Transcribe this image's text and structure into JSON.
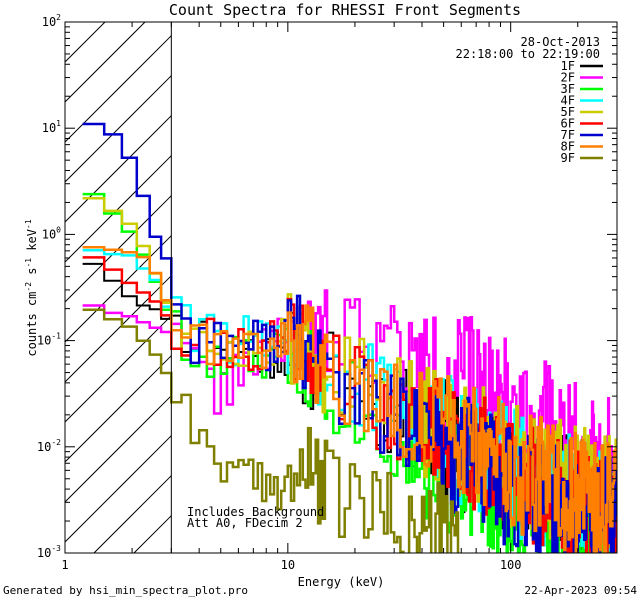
{
  "chart_data": {
    "type": "line",
    "title": "Count Spectra for RHESSI Front Segments",
    "xlabel": "Energy (keV)",
    "ylabel": "counts cm",
    "ylabel_units": [
      "-2",
      " s",
      "-1",
      " keV",
      "-1"
    ],
    "x_scale": "log",
    "y_scale": "log",
    "xlim": [
      1,
      300
    ],
    "ylim": [
      0.001,
      100
    ],
    "x_ticks": [
      {
        "value": 1,
        "label": "1"
      },
      {
        "value": 10,
        "label": "10"
      },
      {
        "value": 100,
        "label": "100"
      }
    ],
    "y_ticks": [
      {
        "value": 0.001,
        "base": "10",
        "exp": "-3"
      },
      {
        "value": 0.01,
        "base": "10",
        "exp": "-2"
      },
      {
        "value": 0.1,
        "base": "10",
        "exp": "-1"
      },
      {
        "value": 1,
        "base": "10",
        "exp": "0"
      },
      {
        "value": 10,
        "base": "10",
        "exp": "1"
      },
      {
        "value": 100,
        "base": "10",
        "exp": "2"
      }
    ],
    "hatched_region_max_keV": 3,
    "date_label": "28-Oct-2013",
    "time_label": "22:18:00 to 22:19:00",
    "annotations": [
      "Includes Background",
      "Att A0, FDecim 2"
    ],
    "footer_left": "Generated by hsi_min_spectra_plot.pro",
    "footer_right": "22-Apr-2023 09:54",
    "series": [
      {
        "name": "1F",
        "color": "#000000",
        "seed": 11,
        "points": [
          [
            1.2,
            0.65
          ],
          [
            1.5,
            0.45
          ],
          [
            2,
            0.25
          ],
          [
            2.5,
            0.2
          ],
          [
            3,
            0.14
          ],
          [
            4,
            0.11
          ],
          [
            6,
            0.09
          ],
          [
            8,
            0.075
          ],
          [
            10,
            0.08
          ],
          [
            15,
            0.05
          ],
          [
            20,
            0.035
          ],
          [
            30,
            0.022
          ],
          [
            40,
            0.015
          ],
          [
            60,
            0.009
          ],
          [
            80,
            0.007
          ],
          [
            100,
            0.005
          ],
          [
            150,
            0.004
          ],
          [
            200,
            0.003
          ],
          [
            300,
            0.0025
          ]
        ]
      },
      {
        "name": "2F",
        "color": "#ff00ff",
        "seed": 22,
        "points": [
          [
            1.2,
            0.24
          ],
          [
            1.5,
            0.2
          ],
          [
            2,
            0.16
          ],
          [
            2.5,
            0.14
          ],
          [
            3,
            0.12
          ],
          [
            4,
            0.05
          ],
          [
            5,
            0.03
          ],
          [
            6,
            0.06
          ],
          [
            8,
            0.08
          ],
          [
            10,
            0.1
          ],
          [
            12,
            0.09
          ],
          [
            15,
            0.13
          ],
          [
            20,
            0.12
          ],
          [
            25,
            0.11
          ],
          [
            30,
            0.09
          ],
          [
            40,
            0.055
          ],
          [
            50,
            0.045
          ],
          [
            60,
            0.05
          ],
          [
            80,
            0.032
          ],
          [
            100,
            0.025
          ],
          [
            150,
            0.015
          ],
          [
            200,
            0.01
          ],
          [
            300,
            0.007
          ]
        ]
      },
      {
        "name": "3F",
        "color": "#00ff00",
        "seed": 33,
        "points": [
          [
            1.2,
            3.0
          ],
          [
            1.5,
            2.0
          ],
          [
            2,
            1.0
          ],
          [
            2.5,
            0.4
          ],
          [
            3,
            0.15
          ],
          [
            4,
            0.05
          ],
          [
            6,
            0.07
          ],
          [
            8,
            0.07
          ],
          [
            10,
            0.08
          ],
          [
            15,
            0.045
          ],
          [
            20,
            0.025
          ],
          [
            30,
            0.012
          ],
          [
            40,
            0.008
          ],
          [
            60,
            0.005
          ],
          [
            80,
            0.004
          ],
          [
            100,
            0.003
          ],
          [
            150,
            0.0025
          ],
          [
            200,
            0.002
          ],
          [
            300,
            0.0015
          ]
        ]
      },
      {
        "name": "4F",
        "color": "#00ffff",
        "seed": 44,
        "points": [
          [
            1.2,
            0.75
          ],
          [
            1.5,
            0.7
          ],
          [
            2,
            0.6
          ],
          [
            2.5,
            0.4
          ],
          [
            3,
            0.16
          ],
          [
            4,
            0.12
          ],
          [
            6,
            0.1
          ],
          [
            8,
            0.09
          ],
          [
            10,
            0.12
          ],
          [
            15,
            0.06
          ],
          [
            20,
            0.04
          ],
          [
            30,
            0.025
          ],
          [
            40,
            0.017
          ],
          [
            60,
            0.011
          ],
          [
            80,
            0.008
          ],
          [
            100,
            0.006
          ],
          [
            150,
            0.004
          ],
          [
            200,
            0.003
          ],
          [
            300,
            0.0025
          ]
        ]
      },
      {
        "name": "5F",
        "color": "#cccc00",
        "seed": 55,
        "points": [
          [
            1.2,
            2.5
          ],
          [
            1.5,
            2.0
          ],
          [
            2,
            1.2
          ],
          [
            2.5,
            0.5
          ],
          [
            3,
            0.16
          ],
          [
            4,
            0.09
          ],
          [
            6,
            0.09
          ],
          [
            8,
            0.08
          ],
          [
            10,
            0.1
          ],
          [
            15,
            0.055
          ],
          [
            20,
            0.04
          ],
          [
            30,
            0.027
          ],
          [
            40,
            0.02
          ],
          [
            60,
            0.013
          ],
          [
            80,
            0.01
          ],
          [
            100,
            0.007
          ],
          [
            150,
            0.005
          ],
          [
            200,
            0.004
          ],
          [
            300,
            0.003
          ]
        ]
      },
      {
        "name": "6F",
        "color": "#ff0000",
        "seed": 66,
        "points": [
          [
            1.2,
            0.7
          ],
          [
            1.5,
            0.55
          ],
          [
            2,
            0.35
          ],
          [
            2.5,
            0.25
          ],
          [
            3,
            0.14
          ],
          [
            4,
            0.1
          ],
          [
            6,
            0.09
          ],
          [
            8,
            0.08
          ],
          [
            10,
            0.11
          ],
          [
            15,
            0.05
          ],
          [
            20,
            0.035
          ],
          [
            30,
            0.02
          ],
          [
            40,
            0.014
          ],
          [
            60,
            0.009
          ],
          [
            80,
            0.007
          ],
          [
            100,
            0.005
          ],
          [
            150,
            0.004
          ],
          [
            200,
            0.003
          ],
          [
            300,
            0.002
          ]
        ]
      },
      {
        "name": "7F",
        "color": "#0000cc",
        "seed": 77,
        "points": [
          [
            1.2,
            12.5
          ],
          [
            1.5,
            10.0
          ],
          [
            1.8,
            8.0
          ],
          [
            2,
            4.5
          ],
          [
            2.3,
            2.0
          ],
          [
            2.5,
            1.0
          ],
          [
            3,
            0.5
          ],
          [
            3.5,
            0.13
          ],
          [
            4,
            0.1
          ],
          [
            6,
            0.1
          ],
          [
            8,
            0.09
          ],
          [
            10,
            0.13
          ],
          [
            15,
            0.05
          ],
          [
            20,
            0.03
          ],
          [
            30,
            0.018
          ],
          [
            40,
            0.012
          ],
          [
            60,
            0.008
          ],
          [
            80,
            0.006
          ],
          [
            100,
            0.004
          ],
          [
            150,
            0.003
          ],
          [
            200,
            0.0025
          ],
          [
            300,
            0.002
          ]
        ]
      },
      {
        "name": "8F",
        "color": "#ff8000",
        "seed": 88,
        "points": [
          [
            1.2,
            0.8
          ],
          [
            1.5,
            0.75
          ],
          [
            2,
            0.7
          ],
          [
            2.5,
            0.5
          ],
          [
            3,
            0.18
          ],
          [
            4,
            0.11
          ],
          [
            6,
            0.1
          ],
          [
            8,
            0.09
          ],
          [
            10,
            0.12
          ],
          [
            15,
            0.055
          ],
          [
            20,
            0.04
          ],
          [
            30,
            0.025
          ],
          [
            40,
            0.018
          ],
          [
            60,
            0.012
          ],
          [
            80,
            0.009
          ],
          [
            100,
            0.006
          ],
          [
            150,
            0.0045
          ],
          [
            200,
            0.0035
          ],
          [
            300,
            0.0025
          ]
        ]
      },
      {
        "name": "9F",
        "color": "#808000",
        "seed": 99,
        "points": [
          [
            1.2,
            0.22
          ],
          [
            1.5,
            0.18
          ],
          [
            2,
            0.13
          ],
          [
            2.5,
            0.08
          ],
          [
            3,
            0.04
          ],
          [
            3.5,
            0.02
          ],
          [
            4,
            0.012
          ],
          [
            5,
            0.008
          ],
          [
            6,
            0.005
          ],
          [
            8,
            0.004
          ],
          [
            10,
            0.005
          ],
          [
            12,
            0.006
          ],
          [
            15,
            0.004
          ],
          [
            20,
            0.003
          ],
          [
            25,
            0.0025
          ],
          [
            30,
            0.002
          ],
          [
            40,
            0.0015
          ],
          [
            50,
            0.0012
          ],
          [
            60,
            0.001
          ]
        ]
      }
    ]
  }
}
